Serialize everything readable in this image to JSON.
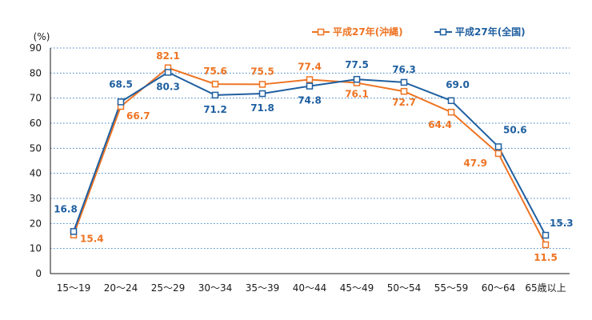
{
  "chart_data": {
    "type": "line",
    "ylabel": "(%)",
    "ylim": [
      0,
      90
    ],
    "yticks": [
      0,
      10,
      20,
      30,
      40,
      50,
      60,
      70,
      80,
      90
    ],
    "grid": "horizontal-dotted",
    "legend_position": "top-right",
    "categories": [
      "15～19",
      "20～24",
      "25～29",
      "30～34",
      "35～39",
      "40～44",
      "45～49",
      "50～54",
      "55～59",
      "60～64",
      "65歳以上"
    ],
    "series": [
      {
        "name": "平成27年(沖縄)",
        "color": "#ee7423",
        "values": [
          15.4,
          66.7,
          82.1,
          75.6,
          75.5,
          77.4,
          76.1,
          72.7,
          64.4,
          47.9,
          11.5
        ],
        "value_labels": [
          "15.4",
          "66.7",
          "82.1",
          "75.6",
          "75.5",
          "77.4",
          "76.1",
          "72.7",
          "64.4",
          "47.9",
          "11.5"
        ]
      },
      {
        "name": "平成27年(全国)",
        "color": "#1f5fa0",
        "values": [
          16.8,
          68.5,
          80.3,
          71.2,
          71.8,
          74.8,
          77.5,
          76.3,
          69.0,
          50.6,
          15.3
        ],
        "value_labels": [
          "16.8",
          "68.5",
          "80.3",
          "71.2",
          "71.8",
          "74.8",
          "77.5",
          "76.3",
          "69.0",
          "50.6",
          "15.3"
        ]
      }
    ]
  }
}
